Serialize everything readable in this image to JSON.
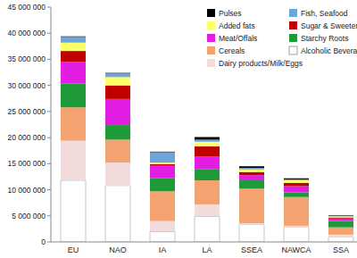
{
  "chart_data": {
    "type": "bar",
    "stacked": true,
    "legend": "upper right",
    "categories": [
      "EU",
      "NAO",
      "IA",
      "LA",
      "SSEA",
      "NAWCA",
      "SSA"
    ],
    "ylim": [
      0,
      45000000
    ],
    "yticks": [
      0,
      {
        "value": 5000000,
        "label": "5 000 000"
      },
      {
        "value": 10000000,
        "label": "10 000 000"
      },
      {
        "value": 15000000,
        "label": "15 000 000"
      },
      {
        "value": 20000000,
        "label": "20 000 000"
      },
      {
        "value": 25000000,
        "label": "25 000 000"
      },
      {
        "value": 30000000,
        "label": "30 000 000"
      },
      {
        "value": 35000000,
        "label": "35 000 000"
      },
      {
        "value": 40000000,
        "label": "40 000 000"
      },
      {
        "value": 45000000,
        "label": "45 000 000"
      }
    ],
    "series": [
      {
        "name": "Alcoholic Beverages",
        "color": "#ffffff",
        "values": [
          11800000,
          10800000,
          2000000,
          4900000,
          3300000,
          2800000,
          900000
        ]
      },
      {
        "name": "Dairy products/Milk/Eggs",
        "color": "#f2dcdb",
        "values": [
          7600000,
          4400000,
          2000000,
          2300000,
          300000,
          300000,
          500000
        ]
      },
      {
        "name": "Cereals",
        "color": "#f4a370",
        "values": [
          6400000,
          4400000,
          5700000,
          4600000,
          6600000,
          5500000,
          1400000
        ]
      },
      {
        "name": "Starchy Roots",
        "color": "#1f9a38",
        "values": [
          4600000,
          2800000,
          2500000,
          2100000,
          1600000,
          900000,
          1200000
        ]
      },
      {
        "name": "Meat/Offals",
        "color": "#e21ee2",
        "values": [
          4100000,
          5000000,
          2400000,
          2500000,
          1000000,
          1200000,
          500000
        ]
      },
      {
        "name": "Sugar & Sweeteners",
        "color": "#c00000",
        "values": [
          2100000,
          2600000,
          300000,
          1900000,
          600000,
          600000,
          200000
        ]
      },
      {
        "name": "Added fats",
        "color": "#ffff66",
        "values": [
          1600000,
          1600000,
          300000,
          900000,
          500000,
          500000,
          200000
        ]
      },
      {
        "name": "Fish, Seafood",
        "color": "#6ea6dc",
        "values": [
          1100000,
          700000,
          2000000,
          400000,
          300000,
          200000,
          100000
        ]
      },
      {
        "name": "Pulses",
        "color": "#000000",
        "values": [
          100000,
          100000,
          100000,
          500000,
          300000,
          200000,
          100000
        ]
      }
    ]
  }
}
